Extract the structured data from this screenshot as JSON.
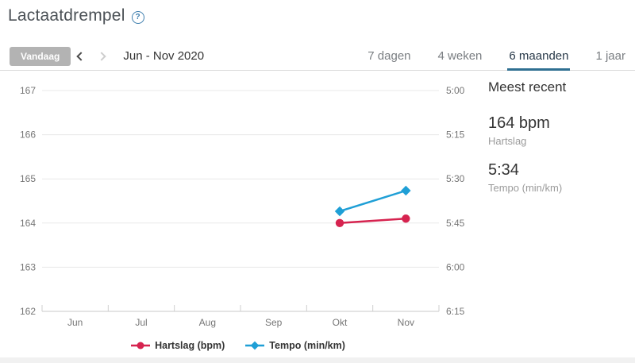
{
  "header": {
    "title": "Lactaatdrempel",
    "help_icon_glyph": "?"
  },
  "toolbar": {
    "today_button": "Vandaag",
    "date_range": "Jun - Nov 2020",
    "tabs": [
      {
        "label": "7 dagen",
        "active": false
      },
      {
        "label": "4 weken",
        "active": false
      },
      {
        "label": "6 maanden",
        "active": true
      },
      {
        "label": "1 jaar",
        "active": false
      }
    ]
  },
  "chart_data": {
    "type": "line",
    "title": "Lactaatdrempel",
    "x_categories": [
      "Jun",
      "Jul",
      "Aug",
      "Sep",
      "Okt",
      "Nov"
    ],
    "grid": true,
    "legend_position": "bottom",
    "left_axis": {
      "name": "Hartslag (bpm)",
      "tick_labels": [
        "167",
        "166",
        "165",
        "164",
        "163",
        "162"
      ],
      "max": 167,
      "min": 162
    },
    "right_axis": {
      "name": "Tempo (min/km)",
      "tick_labels": [
        "5:00",
        "5:15",
        "5:30",
        "5:45",
        "6:00",
        "6:15"
      ],
      "min_seconds": 300,
      "max_seconds": 375,
      "seconds_per_tick": 15
    },
    "series": [
      {
        "name": "Hartslag (bpm)",
        "color": "#d6234f",
        "marker": "circle",
        "axis": "left",
        "points": [
          {
            "x": "Okt",
            "value": 164,
            "display": "164"
          },
          {
            "x": "Nov",
            "value": 164.1,
            "display": "164"
          }
        ]
      },
      {
        "name": "Tempo (min/km)",
        "color": "#1f9fd6",
        "marker": "diamond",
        "axis": "right",
        "points": [
          {
            "x": "Okt",
            "value_seconds": 341,
            "display": "5:41"
          },
          {
            "x": "Nov",
            "value_seconds": 334,
            "display": "5:34"
          }
        ]
      }
    ]
  },
  "recent_panel": {
    "title": "Meest recent",
    "metrics": [
      {
        "value": "164 bpm",
        "label": "Hartslag"
      },
      {
        "value": "5:34",
        "label": "Tempo (min/km)"
      }
    ]
  },
  "colors": {
    "hartslag": "#d6234f",
    "tempo": "#1f9fd6",
    "tab_underline": "#2f6f91",
    "help_icon": "#3f7fae",
    "today_button_bg": "#b3b3b3",
    "gridline": "#e8e8e8",
    "axis_line": "#c9c9c9"
  }
}
